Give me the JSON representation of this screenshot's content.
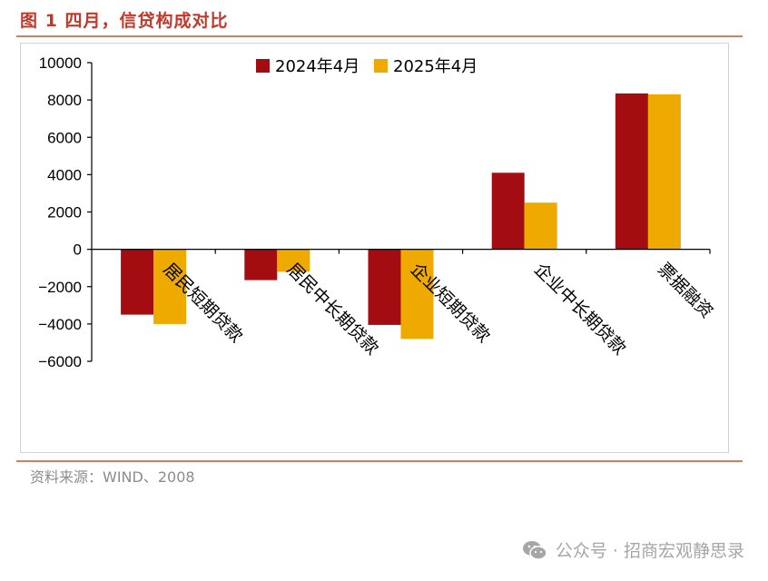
{
  "figure": {
    "title": "图 1 四月，信贷构成对比",
    "source": "资料来源：WIND、2008",
    "watermark": "公众号 · 招商宏观静思录"
  },
  "colors": {
    "series_2024": "#a30d11",
    "series_2025": "#eeaa00",
    "rule": "#c98262",
    "title": "#c0392b"
  },
  "chart_data": {
    "type": "bar",
    "categories": [
      "居民短期贷款",
      "居民中长期贷款",
      "企业短期贷款",
      "企业中长期贷款",
      "票据融资"
    ],
    "series": [
      {
        "name": "2024年4月",
        "values": [
          -3500,
          -1650,
          -4050,
          4100,
          8350
        ]
      },
      {
        "name": "2025年4月",
        "values": [
          -4000,
          -1200,
          -4800,
          2500,
          8300
        ]
      }
    ],
    "yticks": [
      "10000",
      "8000",
      "6000",
      "4000",
      "2000",
      "0",
      "-2000",
      "-4000",
      "-6000"
    ],
    "ylim": [
      -6000,
      10000
    ],
    "legend_position": "top-center",
    "grid": false
  }
}
